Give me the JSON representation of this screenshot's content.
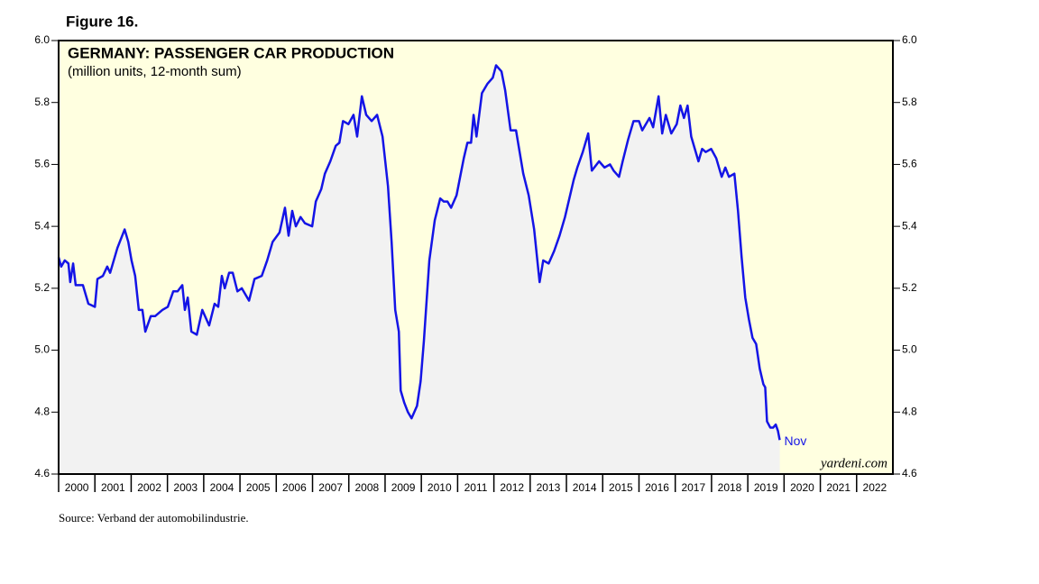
{
  "chart_data": {
    "type": "line",
    "figure_label": "Figure 16.",
    "title": "GERMANY: PASSENGER CAR PRODUCTION",
    "subtitle": "(million units, 12-month sum)",
    "annotation": "Nov",
    "watermark": "yardeni.com",
    "source": "Source: Verband der automobilindustrie.",
    "x": [
      2000.0,
      2000.07,
      2000.17,
      2000.27,
      2000.32,
      2000.4,
      2000.47,
      2000.67,
      2000.82,
      2001.0,
      2001.07,
      2001.22,
      2001.34,
      2001.42,
      2001.52,
      2001.62,
      2001.82,
      2001.92,
      2002.01,
      2002.11,
      2002.21,
      2002.31,
      2002.39,
      2002.54,
      2002.66,
      2002.86,
      2003.01,
      2003.16,
      2003.28,
      2003.41,
      2003.48,
      2003.56,
      2003.66,
      2003.81,
      2003.96,
      2004.15,
      2004.3,
      2004.4,
      2004.5,
      2004.58,
      2004.7,
      2004.8,
      2004.93,
      2005.05,
      2005.25,
      2005.4,
      2005.6,
      2005.75,
      2005.9,
      2006.09,
      2006.24,
      2006.34,
      2006.44,
      2006.54,
      2006.67,
      2006.79,
      2006.99,
      2007.09,
      2007.24,
      2007.34,
      2007.49,
      2007.64,
      2007.74,
      2007.84,
      2007.99,
      2008.13,
      2008.23,
      2008.36,
      2008.48,
      2008.63,
      2008.78,
      2008.93,
      2009.08,
      2009.18,
      2009.28,
      2009.38,
      2009.43,
      2009.53,
      2009.63,
      2009.73,
      2009.88,
      2009.98,
      2010.07,
      2010.22,
      2010.37,
      2010.52,
      2010.62,
      2010.72,
      2010.82,
      2010.97,
      2011.07,
      2011.17,
      2011.27,
      2011.37,
      2011.44,
      2011.52,
      2011.67,
      2011.82,
      2011.97,
      2012.06,
      2012.21,
      2012.31,
      2012.46,
      2012.61,
      2012.81,
      2012.96,
      2013.11,
      2013.26,
      2013.36,
      2013.51,
      2013.66,
      2013.81,
      2013.96,
      2014.1,
      2014.2,
      2014.3,
      2014.45,
      2014.6,
      2014.7,
      2014.9,
      2015.05,
      2015.2,
      2015.3,
      2015.45,
      2015.55,
      2015.7,
      2015.85,
      2016.0,
      2016.09,
      2016.29,
      2016.39,
      2016.54,
      2016.64,
      2016.74,
      2016.89,
      2017.04,
      2017.14,
      2017.24,
      2017.34,
      2017.44,
      2017.54,
      2017.64,
      2017.74,
      2017.84,
      2017.99,
      2018.13,
      2018.28,
      2018.38,
      2018.48,
      2018.63,
      2018.73,
      2018.83,
      2018.93,
      2019.03,
      2019.13,
      2019.23,
      2019.33,
      2019.43,
      2019.48,
      2019.53,
      2019.62,
      2019.7,
      2019.77,
      2019.83,
      2019.88
    ],
    "series": [
      {
        "name": "Passenger car production",
        "color": "#1414e6",
        "values": [
          5.3,
          5.27,
          5.29,
          5.28,
          5.22,
          5.28,
          5.21,
          5.21,
          5.15,
          5.14,
          5.23,
          5.24,
          5.27,
          5.25,
          5.29,
          5.33,
          5.39,
          5.35,
          5.29,
          5.24,
          5.13,
          5.13,
          5.06,
          5.11,
          5.11,
          5.13,
          5.14,
          5.19,
          5.19,
          5.21,
          5.13,
          5.17,
          5.06,
          5.05,
          5.13,
          5.08,
          5.15,
          5.14,
          5.24,
          5.2,
          5.25,
          5.25,
          5.19,
          5.2,
          5.16,
          5.23,
          5.24,
          5.29,
          5.35,
          5.38,
          5.46,
          5.37,
          5.45,
          5.4,
          5.43,
          5.41,
          5.4,
          5.48,
          5.52,
          5.57,
          5.61,
          5.66,
          5.67,
          5.74,
          5.73,
          5.76,
          5.69,
          5.82,
          5.76,
          5.74,
          5.76,
          5.69,
          5.53,
          5.35,
          5.13,
          5.06,
          4.87,
          4.83,
          4.8,
          4.78,
          4.82,
          4.9,
          5.03,
          5.29,
          5.42,
          5.49,
          5.48,
          5.48,
          5.46,
          5.5,
          5.56,
          5.62,
          5.67,
          5.67,
          5.76,
          5.69,
          5.83,
          5.86,
          5.88,
          5.92,
          5.9,
          5.84,
          5.71,
          5.71,
          5.57,
          5.5,
          5.39,
          5.22,
          5.29,
          5.28,
          5.32,
          5.37,
          5.43,
          5.5,
          5.55,
          5.59,
          5.64,
          5.7,
          5.58,
          5.61,
          5.59,
          5.6,
          5.58,
          5.56,
          5.61,
          5.68,
          5.74,
          5.74,
          5.71,
          5.75,
          5.72,
          5.82,
          5.7,
          5.76,
          5.7,
          5.73,
          5.79,
          5.75,
          5.79,
          5.69,
          5.65,
          5.61,
          5.65,
          5.64,
          5.65,
          5.62,
          5.56,
          5.59,
          5.56,
          5.57,
          5.45,
          5.3,
          5.17,
          5.1,
          5.04,
          5.02,
          4.94,
          4.89,
          4.88,
          4.77,
          4.75,
          4.75,
          4.76,
          4.74,
          4.71
        ]
      }
    ],
    "xlim": [
      2000,
      2023
    ],
    "xticks": [
      {
        "value": 2000,
        "label": "2000"
      },
      {
        "value": 2001,
        "label": "2001"
      },
      {
        "value": 2002,
        "label": "2002"
      },
      {
        "value": 2003,
        "label": "2003"
      },
      {
        "value": 2004,
        "label": "2004"
      },
      {
        "value": 2005,
        "label": "2005"
      },
      {
        "value": 2006,
        "label": "2006"
      },
      {
        "value": 2007,
        "label": "2007"
      },
      {
        "value": 2008,
        "label": "2008"
      },
      {
        "value": 2009,
        "label": "2009"
      },
      {
        "value": 2010,
        "label": "2010"
      },
      {
        "value": 2011,
        "label": "2011"
      },
      {
        "value": 2012,
        "label": "2012"
      },
      {
        "value": 2013,
        "label": "2013"
      },
      {
        "value": 2014,
        "label": "2014"
      },
      {
        "value": 2015,
        "label": "2015"
      },
      {
        "value": 2016,
        "label": "2016"
      },
      {
        "value": 2017,
        "label": "2017"
      },
      {
        "value": 2018,
        "label": "2018"
      },
      {
        "value": 2019,
        "label": "2019"
      },
      {
        "value": 2020,
        "label": "2020"
      },
      {
        "value": 2021,
        "label": "2021"
      },
      {
        "value": 2022,
        "label": "2022"
      }
    ],
    "ylim": [
      4.6,
      6.0
    ],
    "yticks": [
      4.6,
      4.8,
      {
        "value": 5.0,
        "label": "5.0"
      },
      5.2,
      5.4,
      5.6,
      5.8,
      {
        "value": 6.0,
        "label": "6.0"
      }
    ],
    "right_axis": true,
    "background": "#ffffe0",
    "area_color": "#f2f2f2"
  }
}
